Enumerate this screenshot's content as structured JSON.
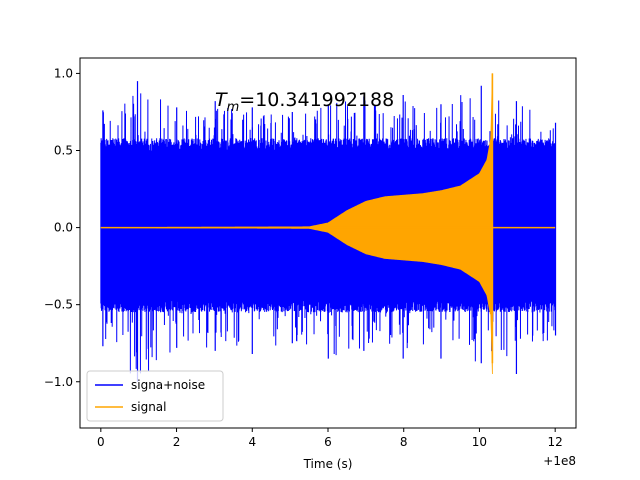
{
  "chart_data": {
    "type": "line",
    "title": "",
    "xlabel": "Time (s)",
    "ylabel": "",
    "xlim": [
      -0.55,
      12.55
    ],
    "ylim": [
      -1.3,
      1.1
    ],
    "x_offset_label": "+1e8",
    "grid": false,
    "legend_position": "lower-left",
    "x_ticks": [
      {
        "value": 0,
        "label": "0"
      },
      {
        "value": 2,
        "label": "2"
      },
      {
        "value": 4,
        "label": "4"
      },
      {
        "value": 6,
        "label": "6"
      },
      {
        "value": 8,
        "label": "8"
      },
      {
        "value": 10,
        "label": "10"
      },
      {
        "value": 12,
        "label": "12"
      }
    ],
    "y_ticks": [
      {
        "value": 1.0,
        "label": "1.0"
      },
      {
        "value": 0.5,
        "label": "0.5"
      },
      {
        "value": 0.0,
        "label": "0.0"
      },
      {
        "value": -0.5,
        "label": "−0.5"
      },
      {
        "value": -1.0,
        "label": "−1.0"
      }
    ],
    "annotation": {
      "symbol": "T",
      "subscript": "m",
      "text": "=10.341992188",
      "x": 3.0,
      "y": 0.82
    },
    "series": [
      {
        "name": "signa+noise",
        "color": "#0000ff",
        "x_range": [
          0,
          12
        ],
        "typical_band": [
          -0.55,
          0.58
        ],
        "envelope": {
          "x": [
            0,
            1,
            2,
            3,
            4,
            5,
            6,
            7,
            8,
            9,
            10,
            11,
            12
          ],
          "upper": [
            0.76,
            0.95,
            0.78,
            0.82,
            0.78,
            0.75,
            0.8,
            0.85,
            0.86,
            0.8,
            0.92,
            0.82,
            0.68
          ],
          "lower": [
            -0.77,
            -1.0,
            -0.78,
            -0.8,
            -0.82,
            -0.75,
            -0.85,
            -0.8,
            -0.85,
            -0.85,
            -0.88,
            -0.95,
            -0.7
          ]
        }
      },
      {
        "name": "signal",
        "color": "#ffa500",
        "x_range": [
          0,
          12
        ],
        "merger_time": 10.341992188,
        "envelope": {
          "x": [
            0,
            5.5,
            6.0,
            6.5,
            7.0,
            7.5,
            8.0,
            8.5,
            9.0,
            9.5,
            10.0,
            10.2,
            10.3,
            10.342,
            10.36,
            12
          ],
          "amplitude": [
            0.0,
            0.005,
            0.03,
            0.11,
            0.17,
            0.2,
            0.21,
            0.22,
            0.24,
            0.27,
            0.35,
            0.44,
            0.58,
            1.0,
            0.0,
            0.0
          ]
        },
        "min_near_merger": -0.88
      }
    ]
  }
}
